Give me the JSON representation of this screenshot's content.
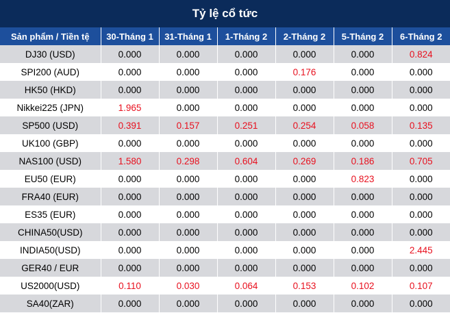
{
  "title": "Tỷ lệ cổ tức",
  "header": {
    "product_label": "Sản phẩm / Tiền tệ",
    "dates": [
      "30-Tháng 1",
      "31-Tháng 1",
      "1-Tháng 2",
      "2-Tháng 2",
      "5-Tháng 2",
      "6-Tháng 2"
    ]
  },
  "highlight_color": "#e8101e",
  "rows": [
    {
      "product": "DJ30 (USD)",
      "values": [
        "0.000",
        "0.000",
        "0.000",
        "0.000",
        "0.000",
        "0.824"
      ],
      "highlight": [
        false,
        false,
        false,
        false,
        false,
        true
      ]
    },
    {
      "product": "SPI200 (AUD)",
      "values": [
        "0.000",
        "0.000",
        "0.000",
        "0.176",
        "0.000",
        "0.000"
      ],
      "highlight": [
        false,
        false,
        false,
        true,
        false,
        false
      ]
    },
    {
      "product": "HK50 (HKD)",
      "values": [
        "0.000",
        "0.000",
        "0.000",
        "0.000",
        "0.000",
        "0.000"
      ],
      "highlight": [
        false,
        false,
        false,
        false,
        false,
        false
      ]
    },
    {
      "product": "Nikkei225 (JPN)",
      "values": [
        "1.965",
        "0.000",
        "0.000",
        "0.000",
        "0.000",
        "0.000"
      ],
      "highlight": [
        true,
        false,
        false,
        false,
        false,
        false
      ]
    },
    {
      "product": "SP500 (USD)",
      "values": [
        "0.391",
        "0.157",
        "0.251",
        "0.254",
        "0.058",
        "0.135"
      ],
      "highlight": [
        true,
        true,
        true,
        true,
        true,
        true
      ]
    },
    {
      "product": "UK100 (GBP)",
      "values": [
        "0.000",
        "0.000",
        "0.000",
        "0.000",
        "0.000",
        "0.000"
      ],
      "highlight": [
        false,
        false,
        false,
        false,
        false,
        false
      ]
    },
    {
      "product": "NAS100 (USD)",
      "values": [
        "1.580",
        "0.298",
        "0.604",
        "0.269",
        "0.186",
        "0.705"
      ],
      "highlight": [
        true,
        true,
        true,
        true,
        true,
        true
      ]
    },
    {
      "product": "EU50 (EUR)",
      "values": [
        "0.000",
        "0.000",
        "0.000",
        "0.000",
        "0.823",
        "0.000"
      ],
      "highlight": [
        false,
        false,
        false,
        false,
        true,
        false
      ]
    },
    {
      "product": "FRA40 (EUR)",
      "values": [
        "0.000",
        "0.000",
        "0.000",
        "0.000",
        "0.000",
        "0.000"
      ],
      "highlight": [
        false,
        false,
        false,
        false,
        false,
        false
      ]
    },
    {
      "product": "ES35 (EUR)",
      "values": [
        "0.000",
        "0.000",
        "0.000",
        "0.000",
        "0.000",
        "0.000"
      ],
      "highlight": [
        false,
        false,
        false,
        false,
        false,
        false
      ]
    },
    {
      "product": "CHINA50(USD)",
      "values": [
        "0.000",
        "0.000",
        "0.000",
        "0.000",
        "0.000",
        "0.000"
      ],
      "highlight": [
        false,
        false,
        false,
        false,
        false,
        false
      ]
    },
    {
      "product": "INDIA50(USD)",
      "values": [
        "0.000",
        "0.000",
        "0.000",
        "0.000",
        "0.000",
        "2.445"
      ],
      "highlight": [
        false,
        false,
        false,
        false,
        false,
        true
      ]
    },
    {
      "product": "GER40 / EUR",
      "values": [
        "0.000",
        "0.000",
        "0.000",
        "0.000",
        "0.000",
        "0.000"
      ],
      "highlight": [
        false,
        false,
        false,
        false,
        false,
        false
      ]
    },
    {
      "product": "US2000(USD)",
      "values": [
        "0.110",
        "0.030",
        "0.064",
        "0.153",
        "0.102",
        "0.107"
      ],
      "highlight": [
        true,
        true,
        true,
        true,
        true,
        true
      ]
    },
    {
      "product": "SA40(ZAR)",
      "values": [
        "0.000",
        "0.000",
        "0.000",
        "0.000",
        "0.000",
        "0.000"
      ],
      "highlight": [
        false,
        false,
        false,
        false,
        false,
        false
      ]
    }
  ]
}
